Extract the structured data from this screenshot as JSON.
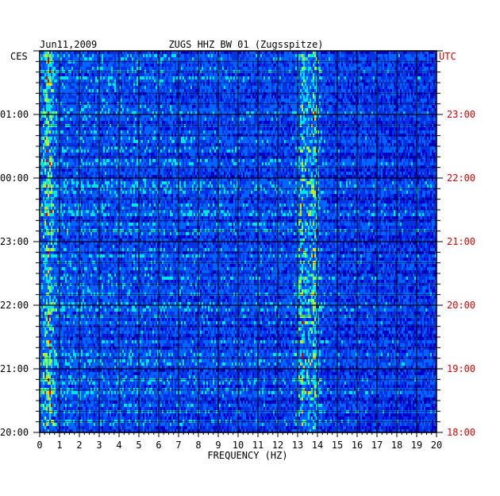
{
  "chart_data": {
    "type": "heatmap",
    "date": "Jun11,2009",
    "title": "ZUGS HHZ BW 01 (Zugsspitze)",
    "xlabel": "FREQUENCY (HZ)",
    "xlim": [
      0,
      20
    ],
    "x_ticks": [
      "0",
      "1",
      "2",
      "3",
      "4",
      "5",
      "6",
      "7",
      "8",
      "9",
      "10",
      "11",
      "12",
      "13",
      "14",
      "15",
      "16",
      "17",
      "18",
      "19",
      "20"
    ],
    "left_axis_title": "CES",
    "left_ticks": [
      "01:00",
      "00:00",
      "23:00",
      "22:00",
      "21:00",
      "20:00"
    ],
    "right_axis_title": "UTC",
    "right_ticks": [
      "23:00",
      "22:00",
      "21:00",
      "20:00",
      "19:00",
      "18:00"
    ],
    "colors": {
      "background": "#0000c8",
      "grid": "#000000",
      "utc_labels": "#dd0000"
    },
    "bright_bands_hz": [
      0.4,
      13.2,
      13.8
    ]
  }
}
